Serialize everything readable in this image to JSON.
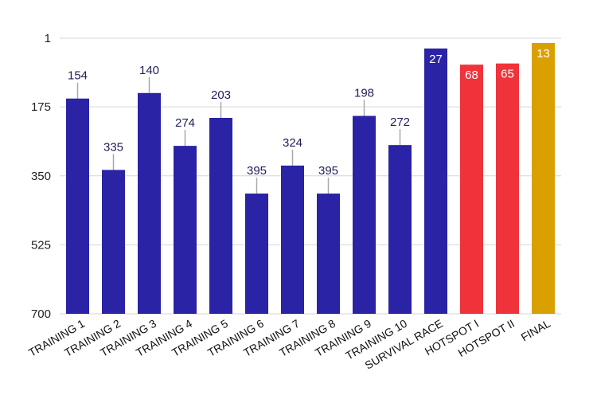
{
  "chart_data": {
    "type": "bar",
    "y_reversed": true,
    "ylim": [
      1,
      700
    ],
    "yticks": [
      1,
      175,
      350,
      525,
      700
    ],
    "grid": true,
    "categories": [
      "TRAINING 1",
      "TRAINING 2",
      "TRAINING 3",
      "TRAINING 4",
      "TRAINING 5",
      "TRAINING 6",
      "TRAINING 7",
      "TRAINING 8",
      "TRAINING 9",
      "TRAINING 10",
      "SURVIVAL RACE",
      "HOTSPOT I",
      "HOTSPOT II",
      "FINAL"
    ],
    "values": [
      154,
      335,
      140,
      274,
      203,
      395,
      324,
      395,
      198,
      272,
      27,
      68,
      65,
      13
    ],
    "bar_colors": [
      "#2a23a6",
      "#2a23a6",
      "#2a23a6",
      "#2a23a6",
      "#2a23a6",
      "#2a23a6",
      "#2a23a6",
      "#2a23a6",
      "#2a23a6",
      "#2a23a6",
      "#2a23a6",
      "#f0333a",
      "#f0333a",
      "#d9a000"
    ]
  }
}
